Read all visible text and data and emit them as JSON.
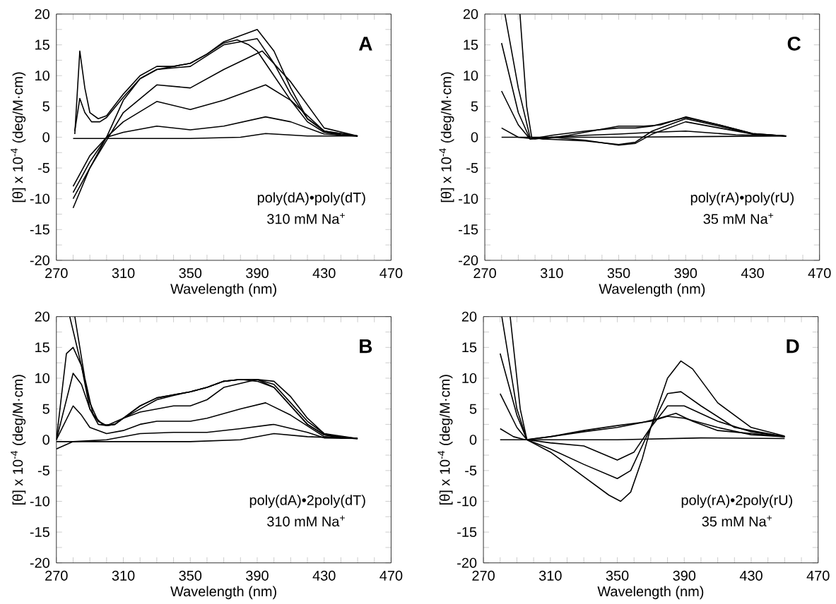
{
  "chart_data": [
    {
      "type": "line",
      "xlabel": "Wavelength (nm)",
      "ylabel": "[θ] x 10$^{-4}$ (deg/M·cm)",
      "annotations": [
        "A",
        "poly(dA)•poly(dT)",
        "310 mM Na$^{+}$"
      ],
      "xlim": [
        270,
        470
      ],
      "ylim": [
        -20,
        20
      ],
      "xticks": [
        270,
        {
          "value": 280,
          "label": null
        },
        {
          "value": 290,
          "label": null
        },
        {
          "value": 300,
          "label": null
        },
        310,
        {
          "value": 320,
          "label": null
        },
        {
          "value": 330,
          "label": null
        },
        {
          "value": 340,
          "label": null
        },
        350,
        {
          "value": 360,
          "label": null
        },
        {
          "value": 370,
          "label": null
        },
        {
          "value": 380,
          "label": null
        },
        390,
        {
          "value": 400,
          "label": null
        },
        {
          "value": 410,
          "label": null
        },
        {
          "value": 420,
          "label": null
        },
        430,
        {
          "value": 440,
          "label": null
        },
        {
          "value": 450,
          "label": null
        },
        {
          "value": 460,
          "label": null
        },
        470
      ],
      "yticks": [
        -20,
        {
          "value": -17.5,
          "label": null
        },
        -15,
        {
          "value": -12.5,
          "label": null
        },
        -10,
        {
          "value": -7.5,
          "label": null
        },
        -5,
        {
          "value": -2.5,
          "label": null
        },
        0,
        {
          "value": 2.5,
          "label": null
        },
        5,
        {
          "value": 7.5,
          "label": null
        },
        10,
        {
          "value": 12.5,
          "label": null
        },
        15,
        {
          "value": 17.5,
          "label": null
        },
        20
      ],
      "grid": false,
      "marker": "none",
      "line_style": "solid",
      "series": [
        {
          "color": "#000000",
          "x": [
            280,
            300,
            350,
            380,
            395,
            420,
            450
          ],
          "values": [
            -0.2,
            -0.2,
            -0.2,
            0,
            0.6,
            0.2,
            0.2
          ]
        },
        {
          "color": "#000000",
          "x": [
            280,
            290,
            300,
            310,
            330,
            350,
            370,
            395,
            410,
            430,
            450
          ],
          "values": [
            -8,
            -3,
            0,
            0.8,
            1.8,
            1.2,
            1.8,
            3.3,
            2.5,
            0.5,
            0.2
          ]
        },
        {
          "color": "#000000",
          "x": [
            280,
            290,
            300,
            310,
            330,
            350,
            370,
            395,
            410,
            430,
            450
          ],
          "values": [
            -9,
            -4,
            0,
            2.5,
            5.8,
            4.5,
            6,
            8.5,
            6,
            1,
            0.2
          ]
        },
        {
          "color": "#000000",
          "x": [
            280,
            290,
            300,
            310,
            330,
            350,
            370,
            393,
            410,
            430,
            450
          ],
          "values": [
            -10,
            -5,
            -0.5,
            4,
            8.5,
            8,
            11,
            14,
            9,
            1.5,
            0.2
          ]
        },
        {
          "color": "#000000",
          "x": [
            280,
            290,
            300,
            310,
            320,
            330,
            340,
            350,
            360,
            370,
            380,
            390,
            400,
            410,
            420,
            430,
            440,
            450
          ],
          "values": [
            -11.5,
            -5,
            0,
            6,
            9.5,
            11,
            11.5,
            12,
            13.5,
            15.5,
            16.5,
            17.5,
            14,
            8,
            3,
            1,
            0.4,
            0.2
          ]
        },
        {
          "color": "#000000",
          "x": [
            281,
            284,
            287,
            290,
            295,
            300,
            310,
            320,
            330,
            340,
            350,
            360,
            370,
            378,
            385,
            390,
            400,
            410,
            420,
            430,
            440,
            450
          ],
          "values": [
            0.5,
            14,
            8,
            4,
            3,
            3.5,
            7,
            10,
            11.5,
            11.5,
            12,
            13.5,
            15.3,
            15.8,
            15,
            14,
            10,
            6,
            2.5,
            0.8,
            0.3,
            0.2
          ]
        },
        {
          "color": "#000000",
          "x": [
            281,
            284,
            287,
            291,
            296,
            300,
            310,
            320,
            330,
            350,
            370,
            380,
            390,
            400,
            410,
            420,
            430,
            450
          ],
          "values": [
            1,
            6.3,
            4,
            2.5,
            2.5,
            3.2,
            6.5,
            9.5,
            11,
            11.5,
            15,
            15.5,
            16,
            12,
            7,
            3,
            1,
            0.2
          ]
        }
      ]
    },
    {
      "type": "line",
      "xlabel": "Wavelength (nm)",
      "ylabel": "[θ] x 10$^{-4}$ (deg/M·cm)",
      "annotations": [
        "C",
        "poly(rA)•poly(rU)",
        "35 mM Na$^{+}$"
      ],
      "xlim": [
        270,
        470
      ],
      "ylim": [
        -20,
        20
      ],
      "xticks": [
        270,
        {
          "value": 280,
          "label": null
        },
        {
          "value": 290,
          "label": null
        },
        {
          "value": 300,
          "label": null
        },
        310,
        {
          "value": 320,
          "label": null
        },
        {
          "value": 330,
          "label": null
        },
        {
          "value": 340,
          "label": null
        },
        350,
        {
          "value": 360,
          "label": null
        },
        {
          "value": 370,
          "label": null
        },
        {
          "value": 380,
          "label": null
        },
        390,
        {
          "value": 400,
          "label": null
        },
        {
          "value": 410,
          "label": null
        },
        {
          "value": 420,
          "label": null
        },
        430,
        {
          "value": 440,
          "label": null
        },
        {
          "value": 450,
          "label": null
        },
        {
          "value": 460,
          "label": null
        },
        470
      ],
      "yticks": [
        -20,
        {
          "value": -17.5,
          "label": null
        },
        -15,
        {
          "value": -12.5,
          "label": null
        },
        -10,
        {
          "value": -7.5,
          "label": null
        },
        -5,
        {
          "value": -2.5,
          "label": null
        },
        0,
        {
          "value": 2.5,
          "label": null
        },
        5,
        {
          "value": 7.5,
          "label": null
        },
        10,
        {
          "value": 12.5,
          "label": null
        },
        15,
        {
          "value": 17.5,
          "label": null
        },
        20
      ],
      "grid": false,
      "marker": "none",
      "line_style": "solid",
      "series": [
        {
          "color": "#000000",
          "x": [
            280,
            350,
            450
          ],
          "values": [
            0,
            0,
            0.2
          ]
        },
        {
          "color": "#000000",
          "x": [
            280,
            290,
            300,
            310,
            330,
            350,
            370,
            390,
            420,
            450
          ],
          "values": [
            1.5,
            0,
            -0.3,
            0,
            0.3,
            0.5,
            0.8,
            1,
            0.4,
            0.2
          ]
        },
        {
          "color": "#000000",
          "x": [
            280,
            290,
            297,
            310,
            330,
            350,
            360,
            370,
            390,
            410,
            430,
            450
          ],
          "values": [
            7.5,
            2,
            -0.3,
            0.3,
            1,
            1.5,
            1.5,
            1.8,
            3.2,
            2,
            0.6,
            0.2
          ]
        },
        {
          "color": "#000000",
          "x": [
            280,
            290,
            297,
            310,
            330,
            350,
            360,
            370,
            390,
            410,
            430,
            450
          ],
          "values": [
            15.3,
            4,
            -0.3,
            0,
            -0.5,
            -1.3,
            -1,
            0.5,
            2.5,
            1.5,
            0.5,
            0.2
          ]
        },
        {
          "color": "#000000",
          "x": [
            282,
            290,
            297,
            305,
            330,
            350,
            360,
            370,
            390,
            410,
            430,
            450
          ],
          "values": [
            20,
            8,
            0,
            -0.3,
            -0.6,
            -1.2,
            -0.8,
            1,
            3,
            1.8,
            0.5,
            0.2
          ]
        },
        {
          "color": "#000000",
          "x": [
            291,
            295,
            298,
            305,
            320,
            350,
            365,
            375,
            390,
            410,
            430,
            450
          ],
          "values": [
            20,
            5,
            0,
            -0.3,
            0.3,
            1.8,
            1.8,
            2,
            3.3,
            2,
            0.6,
            0.2
          ]
        }
      ]
    },
    {
      "type": "line",
      "xlabel": "Wavelength (nm)",
      "ylabel": "[θ] x 10$^{-4}$ (deg/M·cm)",
      "annotations": [
        "B",
        "poly(dA)•2poly(dT)",
        "310 mM Na$^{+}$"
      ],
      "xlim": [
        270,
        470
      ],
      "ylim": [
        -20,
        20
      ],
      "xticks": [
        270,
        {
          "value": 280,
          "label": null
        },
        {
          "value": 290,
          "label": null
        },
        {
          "value": 300,
          "label": null
        },
        310,
        {
          "value": 320,
          "label": null
        },
        {
          "value": 330,
          "label": null
        },
        {
          "value": 340,
          "label": null
        },
        350,
        {
          "value": 360,
          "label": null
        },
        {
          "value": 370,
          "label": null
        },
        {
          "value": 380,
          "label": null
        },
        390,
        {
          "value": 400,
          "label": null
        },
        {
          "value": 410,
          "label": null
        },
        {
          "value": 420,
          "label": null
        },
        430,
        {
          "value": 440,
          "label": null
        },
        {
          "value": 450,
          "label": null
        },
        {
          "value": 460,
          "label": null
        },
        470
      ],
      "yticks": [
        -20,
        {
          "value": -17.5,
          "label": null
        },
        -15,
        {
          "value": -12.5,
          "label": null
        },
        -10,
        {
          "value": -7.5,
          "label": null
        },
        -5,
        {
          "value": -2.5,
          "label": null
        },
        0,
        {
          "value": 2.5,
          "label": null
        },
        5,
        {
          "value": 7.5,
          "label": null
        },
        10,
        {
          "value": 12.5,
          "label": null
        },
        15,
        {
          "value": 17.5,
          "label": null
        },
        20
      ],
      "grid": false,
      "marker": "none",
      "line_style": "solid",
      "series": [
        {
          "color": "#000000",
          "x": [
            270,
            300,
            350,
            380,
            400,
            420,
            450
          ],
          "values": [
            -0.3,
            -0.3,
            -0.3,
            0,
            1,
            0.5,
            0.2
          ]
        },
        {
          "color": "#000000",
          "x": [
            270,
            280,
            300,
            320,
            340,
            360,
            380,
            400,
            420,
            430,
            450
          ],
          "values": [
            -1.5,
            -0.3,
            0,
            1,
            1.2,
            1.2,
            1.8,
            2.5,
            1.2,
            0.3,
            0.2
          ]
        },
        {
          "color": "#000000",
          "x": [
            270,
            280,
            285,
            290,
            300,
            310,
            320,
            330,
            340,
            350,
            360,
            380,
            395,
            410,
            430,
            450
          ],
          "values": [
            0,
            5.5,
            4,
            2,
            1,
            1.5,
            2.5,
            3,
            3,
            3,
            3.5,
            5,
            6,
            4,
            0.5,
            0.2
          ]
        },
        {
          "color": "#000000",
          "x": [
            270,
            280,
            285,
            290,
            295,
            300,
            305,
            310,
            320,
            330,
            340,
            350,
            360,
            370,
            390,
            400,
            410,
            420,
            430,
            440,
            450
          ],
          "values": [
            0,
            10.8,
            9,
            5,
            3,
            2.3,
            2.5,
            3.5,
            4.5,
            5,
            5.5,
            5.5,
            6.5,
            8.5,
            9.8,
            9.5,
            7,
            3.5,
            1,
            0.3,
            0.2
          ]
        },
        {
          "color": "#000000",
          "x": [
            270,
            276,
            280,
            285,
            290,
            295,
            300,
            305,
            310,
            320,
            330,
            340,
            350,
            360,
            370,
            380,
            390,
            400,
            410,
            420,
            430,
            440,
            450
          ],
          "values": [
            0,
            14,
            15,
            12,
            6,
            3,
            2.3,
            2.5,
            3.5,
            5,
            6.5,
            7.2,
            7.8,
            8.5,
            9.5,
            9.8,
            9.8,
            8.5,
            5.5,
            2.5,
            0.8,
            0.3,
            0.2
          ]
        },
        {
          "color": "#000000",
          "x": [
            278,
            285,
            290,
            295,
            300,
            310,
            320,
            330,
            340,
            350,
            360,
            370,
            380,
            390,
            400,
            410,
            420,
            430,
            450
          ],
          "values": [
            20,
            12,
            5,
            2.5,
            2.3,
            3.5,
            5.5,
            6.8,
            7.3,
            7.8,
            8.5,
            9.5,
            9.8,
            9.5,
            8.5,
            5.5,
            2.5,
            0.8,
            0.2
          ]
        },
        {
          "color": "#000000",
          "x": [
            281,
            287,
            292,
            298,
            305,
            310,
            320,
            330,
            340,
            350,
            360,
            370,
            380,
            390,
            400,
            410,
            420,
            430,
            450
          ],
          "values": [
            20,
            10,
            4,
            2.4,
            2.5,
            3.5,
            5.5,
            6.8,
            7.3,
            7.8,
            8.5,
            9.5,
            9.8,
            9.8,
            9,
            6,
            3,
            1,
            0.2
          ]
        }
      ]
    },
    {
      "type": "line",
      "xlabel": "Wavelength (nm)",
      "ylabel": "[θ] x 10$^{-4}$ (deg/M·cm)",
      "annotations": [
        "D",
        "poly(rA)•2poly(rU)",
        "35 mM Na$^{+}$"
      ],
      "xlim": [
        270,
        470
      ],
      "ylim": [
        -20,
        20
      ],
      "xticks": [
        270,
        {
          "value": 280,
          "label": null
        },
        {
          "value": 290,
          "label": null
        },
        {
          "value": 300,
          "label": null
        },
        310,
        {
          "value": 320,
          "label": null
        },
        {
          "value": 330,
          "label": null
        },
        {
          "value": 340,
          "label": null
        },
        350,
        {
          "value": 360,
          "label": null
        },
        {
          "value": 370,
          "label": null
        },
        {
          "value": 380,
          "label": null
        },
        390,
        {
          "value": 400,
          "label": null
        },
        {
          "value": 410,
          "label": null
        },
        {
          "value": 420,
          "label": null
        },
        430,
        {
          "value": 440,
          "label": null
        },
        {
          "value": 450,
          "label": null
        },
        {
          "value": 460,
          "label": null
        },
        470
      ],
      "yticks": [
        -20,
        {
          "value": -17.5,
          "label": null
        },
        -15,
        {
          "value": -12.5,
          "label": null
        },
        -10,
        {
          "value": -7.5,
          "label": null
        },
        -5,
        {
          "value": -2.5,
          "label": null
        },
        0,
        {
          "value": 2.5,
          "label": null
        },
        5,
        {
          "value": 7.5,
          "label": null
        },
        10,
        {
          "value": 12.5,
          "label": null
        },
        15,
        {
          "value": 17.5,
          "label": null
        },
        20
      ],
      "grid": false,
      "marker": "none",
      "line_style": "solid",
      "series": [
        {
          "color": "#000000",
          "x": [
            280,
            300,
            350,
            400,
            450
          ],
          "values": [
            0,
            0,
            0,
            0.3,
            0.2
          ]
        },
        {
          "color": "#000000",
          "x": [
            280,
            288,
            295,
            310,
            330,
            350,
            370,
            380,
            390,
            410,
            430,
            450
          ],
          "values": [
            1.8,
            0.5,
            0,
            0.5,
            1.5,
            2.3,
            3,
            3.8,
            3.5,
            2,
            0.8,
            0.5
          ]
        },
        {
          "color": "#000000",
          "x": [
            280,
            290,
            296,
            310,
            330,
            350,
            365,
            375,
            385,
            395,
            410,
            450
          ],
          "values": [
            7.5,
            2,
            0,
            0.5,
            1.3,
            2,
            2.8,
            3.5,
            4.3,
            3,
            1.5,
            0.5
          ]
        },
        {
          "color": "#000000",
          "x": [
            280,
            290,
            296,
            310,
            330,
            350,
            360,
            370,
            380,
            390,
            410,
            430,
            450
          ],
          "values": [
            14,
            4,
            0,
            -0.5,
            -1,
            -3.3,
            -2,
            2,
            5.5,
            5.5,
            3,
            1.3,
            0.5
          ]
        },
        {
          "color": "#000000",
          "x": [
            281,
            290,
            296,
            310,
            330,
            350,
            358,
            370,
            380,
            388,
            400,
            420,
            450
          ],
          "values": [
            20,
            5,
            0,
            -1.5,
            -4,
            -6.3,
            -5,
            2,
            7.5,
            7.8,
            5.5,
            2,
            0.5
          ]
        },
        {
          "color": "#000000",
          "x": [
            286,
            292,
            296,
            310,
            330,
            345,
            352,
            358,
            365,
            370,
            380,
            388,
            395,
            410,
            430,
            450
          ],
          "values": [
            20,
            5,
            0,
            -2,
            -6,
            -9,
            -10,
            -8.5,
            -3,
            2,
            10,
            12.8,
            11.5,
            6,
            2,
            0.6
          ]
        }
      ]
    }
  ]
}
